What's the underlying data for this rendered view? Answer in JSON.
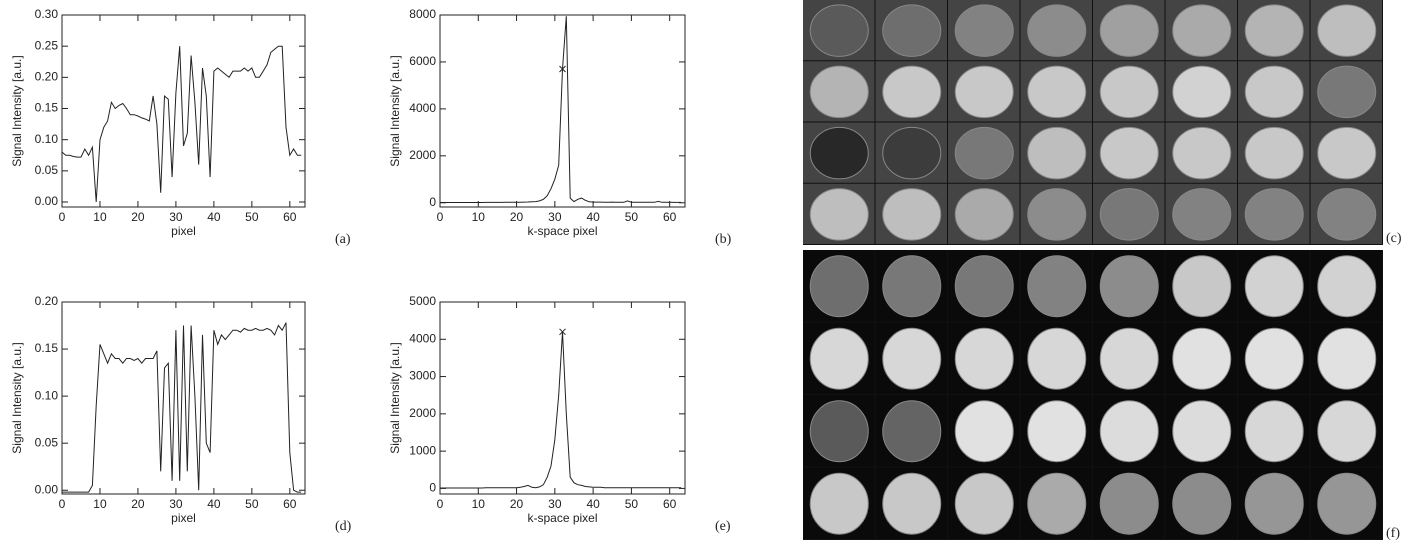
{
  "chart_data": [
    {
      "type": "line",
      "label": "(a)",
      "xlabel": "pixel",
      "ylabel": "Signal Intensity [a.u.]",
      "xlim": [
        0,
        64
      ],
      "ylim": [
        -0.008,
        0.3
      ],
      "xticks": [
        0,
        10,
        20,
        30,
        40,
        50,
        60
      ],
      "yticks": [
        {
          "value": 0,
          "label": "0.00"
        },
        0.05,
        {
          "value": 0.1,
          "label": "0.10"
        },
        0.15,
        {
          "value": 0.2,
          "label": "0.20"
        },
        0.25,
        {
          "value": 0.3,
          "label": "0.30"
        }
      ],
      "color": "#222222",
      "x": [
        0,
        1,
        2,
        3,
        4,
        5,
        6,
        7,
        8,
        9,
        10,
        11,
        12,
        13,
        14,
        15,
        16,
        17,
        18,
        19,
        20,
        21,
        22,
        23,
        24,
        25,
        26,
        27,
        28,
        29,
        30,
        31,
        32,
        33,
        34,
        35,
        36,
        37,
        38,
        39,
        40,
        41,
        42,
        43,
        44,
        45,
        46,
        47,
        48,
        49,
        50,
        51,
        52,
        53,
        54,
        55,
        56,
        57,
        58,
        59,
        60,
        61,
        62,
        63
      ],
      "values": [
        0.08,
        0.075,
        0.075,
        0.073,
        0.072,
        0.072,
        0.085,
        0.075,
        0.088,
        0.0,
        0.1,
        0.12,
        0.13,
        0.16,
        0.15,
        0.155,
        0.158,
        0.15,
        0.14,
        0.14,
        0.138,
        0.135,
        0.133,
        0.13,
        0.17,
        0.125,
        0.015,
        0.17,
        0.165,
        0.04,
        0.175,
        0.25,
        0.09,
        0.11,
        0.235,
        0.16,
        0.06,
        0.215,
        0.17,
        0.04,
        0.21,
        0.215,
        0.21,
        0.205,
        0.2,
        0.21,
        0.21,
        0.21,
        0.215,
        0.21,
        0.215,
        0.2,
        0.2,
        0.21,
        0.22,
        0.24,
        0.245,
        0.25,
        0.25,
        0.12,
        0.075,
        0.085,
        0.075,
        0.075
      ]
    },
    {
      "type": "line",
      "label": "(b)",
      "xlabel": "k-space pixel",
      "ylabel": "Signal Intensity [a.u.]",
      "xlim": [
        0,
        64
      ],
      "ylim": [
        -180,
        8000
      ],
      "xticks": [
        0,
        10,
        20,
        30,
        40,
        50,
        60
      ],
      "yticks": [
        0,
        2000,
        4000,
        6000,
        8000
      ],
      "color": "#222222",
      "marker": {
        "x": 32,
        "y": 5700
      },
      "x": [
        0,
        1,
        2,
        3,
        4,
        5,
        6,
        7,
        8,
        9,
        10,
        11,
        12,
        13,
        14,
        15,
        16,
        17,
        18,
        19,
        20,
        21,
        22,
        23,
        24,
        25,
        26,
        27,
        28,
        29,
        30,
        31,
        32,
        33,
        34,
        35,
        36,
        37,
        38,
        39,
        40,
        41,
        42,
        43,
        44,
        45,
        46,
        47,
        48,
        49,
        50,
        51,
        52,
        53,
        54,
        55,
        56,
        57,
        58,
        59,
        60,
        61,
        62,
        63
      ],
      "values": [
        10,
        10,
        10,
        10,
        10,
        10,
        10,
        10,
        10,
        10,
        10,
        10,
        15,
        15,
        15,
        15,
        15,
        20,
        20,
        20,
        20,
        25,
        30,
        35,
        40,
        50,
        80,
        150,
        300,
        600,
        1000,
        1600,
        5700,
        7950,
        200,
        50,
        150,
        200,
        100,
        40,
        30,
        30,
        30,
        20,
        20,
        30,
        20,
        20,
        20,
        80,
        20,
        20,
        20,
        20,
        20,
        20,
        20,
        60,
        20,
        20,
        20,
        15,
        15,
        15
      ]
    },
    {
      "type": "line",
      "label": "(d)",
      "xlabel": "pixel",
      "ylabel": "Signal Intensity [a.u.]",
      "xlim": [
        0,
        64
      ],
      "ylim": [
        -0.004,
        0.2
      ],
      "xticks": [
        0,
        10,
        20,
        30,
        40,
        50,
        60
      ],
      "yticks": [
        {
          "value": 0,
          "label": "0.00"
        },
        0.05,
        {
          "value": 0.1,
          "label": "0.10"
        },
        0.15,
        {
          "value": 0.2,
          "label": "0.20"
        }
      ],
      "color": "#222222",
      "x": [
        0,
        1,
        2,
        3,
        4,
        5,
        6,
        7,
        8,
        9,
        10,
        11,
        12,
        13,
        14,
        15,
        16,
        17,
        18,
        19,
        20,
        21,
        22,
        23,
        24,
        25,
        26,
        27,
        28,
        29,
        30,
        31,
        32,
        33,
        34,
        35,
        36,
        37,
        38,
        39,
        40,
        41,
        42,
        43,
        44,
        45,
        46,
        47,
        48,
        49,
        50,
        51,
        52,
        53,
        54,
        55,
        56,
        57,
        58,
        59,
        60,
        61,
        62,
        63
      ],
      "values": [
        -0.002,
        -0.002,
        -0.002,
        -0.002,
        -0.002,
        -0.002,
        -0.002,
        -0.002,
        0.005,
        0.09,
        0.155,
        0.145,
        0.135,
        0.145,
        0.14,
        0.14,
        0.135,
        0.14,
        0.14,
        0.138,
        0.14,
        0.135,
        0.14,
        0.14,
        0.14,
        0.148,
        0.02,
        0.13,
        0.135,
        0.01,
        0.17,
        0.01,
        0.175,
        0.02,
        0.175,
        0.1,
        0.0,
        0.165,
        0.05,
        0.04,
        0.17,
        0.155,
        0.165,
        0.16,
        0.165,
        0.17,
        0.17,
        0.168,
        0.172,
        0.17,
        0.17,
        0.172,
        0.17,
        0.17,
        0.172,
        0.17,
        0.165,
        0.175,
        0.17,
        0.178,
        0.04,
        0.0,
        -0.002,
        -0.002
      ]
    },
    {
      "type": "line",
      "label": "(e)",
      "xlabel": "k-space pixel",
      "ylabel": "Signal Intensity [a.u.]",
      "xlim": [
        0,
        64
      ],
      "ylim": [
        -150,
        5000
      ],
      "xticks": [
        0,
        10,
        20,
        30,
        40,
        50,
        60
      ],
      "yticks": [
        0,
        1000,
        2000,
        3000,
        4000,
        5000
      ],
      "color": "#222222",
      "marker": {
        "x": 32,
        "y": 4200
      },
      "x": [
        0,
        1,
        2,
        3,
        4,
        5,
        6,
        7,
        8,
        9,
        10,
        11,
        12,
        13,
        14,
        15,
        16,
        17,
        18,
        19,
        20,
        21,
        22,
        23,
        24,
        25,
        26,
        27,
        28,
        29,
        30,
        31,
        32,
        33,
        34,
        35,
        36,
        37,
        38,
        39,
        40,
        41,
        42,
        43,
        44,
        45,
        46,
        47,
        48,
        49,
        50,
        51,
        52,
        53,
        54,
        55,
        56,
        57,
        58,
        59,
        60,
        61,
        62,
        63
      ],
      "values": [
        10,
        10,
        10,
        10,
        10,
        10,
        10,
        10,
        10,
        10,
        10,
        10,
        15,
        15,
        15,
        15,
        15,
        20,
        20,
        20,
        20,
        30,
        50,
        80,
        30,
        20,
        40,
        100,
        300,
        600,
        1300,
        2500,
        4200,
        2000,
        300,
        150,
        100,
        80,
        50,
        40,
        30,
        30,
        30,
        20,
        20,
        20,
        20,
        20,
        20,
        20,
        20,
        20,
        20,
        20,
        20,
        20,
        20,
        20,
        20,
        20,
        20,
        15,
        15,
        15
      ]
    }
  ],
  "figures": [
    {
      "label": "(c)"
    },
    {
      "label": "(f)"
    }
  ]
}
